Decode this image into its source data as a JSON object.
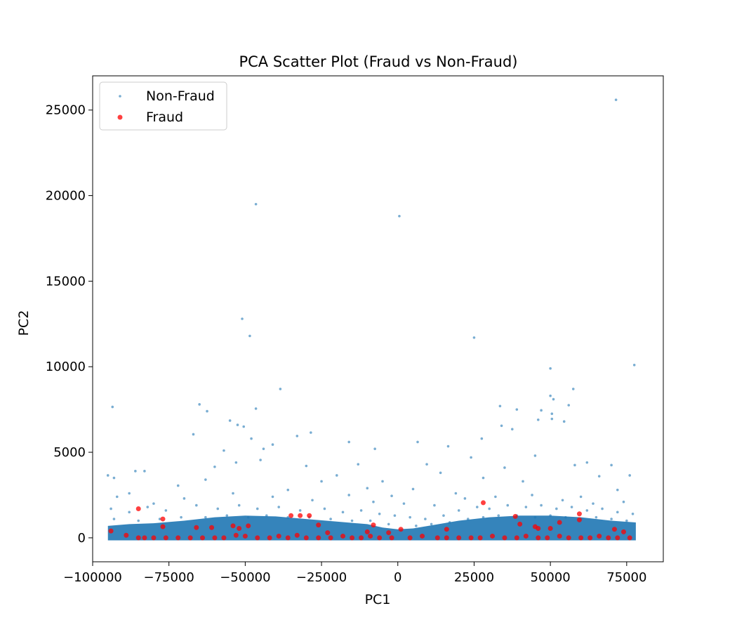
{
  "chart_data": {
    "type": "scatter",
    "title": "PCA Scatter Plot (Fraud vs Non-Fraud)",
    "xlabel": "PC1",
    "ylabel": "PC2",
    "xlim": [
      -100000,
      87000
    ],
    "ylim": [
      -1400,
      27000
    ],
    "xticks": [
      -100000,
      -75000,
      -50000,
      -25000,
      0,
      25000,
      50000,
      75000
    ],
    "xtick_labels": [
      "−100000",
      "−75000",
      "−50000",
      "−25000",
      "0",
      "25000",
      "50000",
      "75000"
    ],
    "yticks": [
      0,
      5000,
      10000,
      15000,
      20000,
      25000
    ],
    "ytick_labels": [
      "0",
      "5000",
      "10000",
      "15000",
      "20000",
      "25000"
    ],
    "grid": false,
    "legend_position": "top-left",
    "series": [
      {
        "name": "Non-Fraud",
        "color": "#1f77b4",
        "marker": "small-dot",
        "points": [
          [
            71500,
            25600
          ],
          [
            -46500,
            19500
          ],
          [
            500,
            18800
          ],
          [
            -51000,
            12800
          ],
          [
            -48500,
            11800
          ],
          [
            25000,
            11700
          ],
          [
            77500,
            10100
          ],
          [
            50000,
            9900
          ],
          [
            -38500,
            8700
          ],
          [
            57500,
            8700
          ],
          [
            50000,
            8300
          ],
          [
            51000,
            8100
          ],
          [
            -65000,
            7800
          ],
          [
            56000,
            7750
          ],
          [
            -93500,
            7650
          ],
          [
            33500,
            7700
          ],
          [
            39000,
            7500
          ],
          [
            -46500,
            7550
          ],
          [
            47000,
            7450
          ],
          [
            -62500,
            7400
          ],
          [
            50500,
            7250
          ],
          [
            50500,
            6950
          ],
          [
            46000,
            6900
          ],
          [
            54500,
            6800
          ],
          [
            -55000,
            6850
          ],
          [
            -52500,
            6600
          ],
          [
            -50500,
            6500
          ],
          [
            34000,
            6550
          ],
          [
            37500,
            6350
          ],
          [
            -28500,
            6150
          ],
          [
            -67000,
            6050
          ],
          [
            -33000,
            5950
          ],
          [
            27500,
            5800
          ],
          [
            -48000,
            5800
          ],
          [
            -44000,
            5200
          ],
          [
            -16000,
            5600
          ],
          [
            -41000,
            5450
          ],
          [
            6500,
            5600
          ],
          [
            16500,
            5350
          ],
          [
            -7500,
            5200
          ],
          [
            -57000,
            5100
          ],
          [
            -45000,
            4550
          ],
          [
            45000,
            4800
          ],
          [
            -30000,
            4200
          ],
          [
            62000,
            4400
          ],
          [
            -60000,
            4150
          ],
          [
            -53000,
            4400
          ],
          [
            24000,
            4700
          ],
          [
            70000,
            4250
          ],
          [
            -13000,
            4300
          ],
          [
            58000,
            4250
          ],
          [
            -83000,
            3900
          ],
          [
            -95000,
            3650
          ],
          [
            -93000,
            3500
          ],
          [
            -20000,
            3650
          ],
          [
            -63000,
            3400
          ],
          [
            9500,
            4300
          ],
          [
            14000,
            3800
          ],
          [
            35000,
            4100
          ],
          [
            76000,
            3650
          ],
          [
            -25000,
            3300
          ],
          [
            28000,
            3500
          ],
          [
            -5000,
            3300
          ],
          [
            66000,
            3600
          ],
          [
            -72000,
            3050
          ],
          [
            -10000,
            2900
          ],
          [
            5000,
            2850
          ],
          [
            -86000,
            3900
          ],
          [
            -88000,
            2600
          ],
          [
            41000,
            3300
          ],
          [
            -36000,
            2800
          ],
          [
            19000,
            2600
          ],
          [
            72000,
            2800
          ],
          [
            -2000,
            2450
          ],
          [
            60000,
            2400
          ],
          [
            -92000,
            2400
          ],
          [
            -80000,
            2000
          ],
          [
            -70000,
            2300
          ],
          [
            -54000,
            2600
          ],
          [
            -41000,
            2400
          ],
          [
            -28000,
            2200
          ],
          [
            -16000,
            2500
          ],
          [
            -8000,
            2100
          ],
          [
            2000,
            2000
          ],
          [
            12000,
            1900
          ],
          [
            22000,
            2300
          ],
          [
            32000,
            2400
          ],
          [
            44000,
            2500
          ],
          [
            54000,
            2200
          ],
          [
            64000,
            2000
          ],
          [
            74000,
            2100
          ],
          [
            -94000,
            1700
          ],
          [
            -88000,
            1500
          ],
          [
            -82000,
            1800
          ],
          [
            -76000,
            1600
          ],
          [
            -66000,
            1900
          ],
          [
            -59000,
            1700
          ],
          [
            -52000,
            1900
          ],
          [
            -46000,
            1700
          ],
          [
            -39000,
            1800
          ],
          [
            -32000,
            1600
          ],
          [
            -24000,
            1700
          ],
          [
            -18000,
            1500
          ],
          [
            -12000,
            1600
          ],
          [
            -6000,
            1400
          ],
          [
            -1000,
            1300
          ],
          [
            4000,
            1200
          ],
          [
            9000,
            1100
          ],
          [
            15000,
            1300
          ],
          [
            20000,
            1600
          ],
          [
            26000,
            1800
          ],
          [
            30000,
            1700
          ],
          [
            36000,
            1900
          ],
          [
            42000,
            1800
          ],
          [
            47000,
            1900
          ],
          [
            52000,
            1700
          ],
          [
            57000,
            1800
          ],
          [
            62000,
            1600
          ],
          [
            67000,
            1700
          ],
          [
            72000,
            1500
          ],
          [
            77000,
            1400
          ],
          [
            -93000,
            1100
          ],
          [
            -85000,
            1000
          ],
          [
            -78000,
            1100
          ],
          [
            -71000,
            1200
          ],
          [
            -63000,
            1200
          ],
          [
            -56000,
            1300
          ],
          [
            -49000,
            1200
          ],
          [
            -43000,
            1300
          ],
          [
            -36000,
            1200
          ],
          [
            -29000,
            1200
          ],
          [
            -22000,
            1100
          ],
          [
            -15000,
            1000
          ],
          [
            -9000,
            1000
          ],
          [
            -3000,
            800
          ],
          [
            6000,
            700
          ],
          [
            11000,
            800
          ],
          [
            17000,
            900
          ],
          [
            23000,
            1100
          ],
          [
            28000,
            1200
          ],
          [
            33000,
            1300
          ],
          [
            39000,
            1300
          ],
          [
            45000,
            1200
          ],
          [
            50000,
            1300
          ],
          [
            55000,
            1200
          ],
          [
            60000,
            1100
          ],
          [
            65000,
            1200
          ],
          [
            70000,
            1100
          ],
          [
            75000,
            1000
          ]
        ]
      },
      {
        "name": "Fraud",
        "color": "#ff0000",
        "marker": "dot",
        "points": [
          [
            -85000,
            1700
          ],
          [
            -77000,
            1100
          ],
          [
            -77000,
            650
          ],
          [
            -66000,
            600
          ],
          [
            -61000,
            600
          ],
          [
            -54000,
            700
          ],
          [
            -52000,
            550
          ],
          [
            -49000,
            700
          ],
          [
            -35000,
            1300
          ],
          [
            -32000,
            1300
          ],
          [
            -29000,
            1300
          ],
          [
            -26000,
            750
          ],
          [
            -23000,
            300
          ],
          [
            -8000,
            750
          ],
          [
            -10000,
            350
          ],
          [
            -3000,
            300
          ],
          [
            1000,
            500
          ],
          [
            16000,
            500
          ],
          [
            28000,
            2050
          ],
          [
            38500,
            1250
          ],
          [
            40000,
            800
          ],
          [
            45000,
            650
          ],
          [
            46000,
            550
          ],
          [
            50000,
            550
          ],
          [
            53000,
            900
          ],
          [
            59500,
            1400
          ],
          [
            59500,
            1050
          ],
          [
            71000,
            500
          ],
          [
            74000,
            350
          ],
          [
            -94000,
            400
          ],
          [
            -89000,
            150
          ],
          [
            -85000,
            0
          ],
          [
            -83000,
            0
          ],
          [
            -80000,
            0
          ],
          [
            -76000,
            0
          ],
          [
            -72000,
            0
          ],
          [
            -68000,
            0
          ],
          [
            -64000,
            0
          ],
          [
            -60000,
            0
          ],
          [
            -57000,
            0
          ],
          [
            -53000,
            150
          ],
          [
            -50000,
            100
          ],
          [
            -46000,
            0
          ],
          [
            -42000,
            0
          ],
          [
            -39000,
            100
          ],
          [
            -36000,
            0
          ],
          [
            -33000,
            150
          ],
          [
            -30000,
            0
          ],
          [
            -26000,
            0
          ],
          [
            -22000,
            0
          ],
          [
            -18000,
            100
          ],
          [
            -15000,
            0
          ],
          [
            -12000,
            0
          ],
          [
            -9000,
            100
          ],
          [
            -6000,
            0
          ],
          [
            -2000,
            0
          ],
          [
            4000,
            0
          ],
          [
            8000,
            100
          ],
          [
            13000,
            0
          ],
          [
            16000,
            0
          ],
          [
            20000,
            0
          ],
          [
            24000,
            0
          ],
          [
            27000,
            0
          ],
          [
            31000,
            100
          ],
          [
            35000,
            0
          ],
          [
            39000,
            0
          ],
          [
            42000,
            100
          ],
          [
            46000,
            0
          ],
          [
            49000,
            0
          ],
          [
            53000,
            100
          ],
          [
            56000,
            0
          ],
          [
            60000,
            0
          ],
          [
            63000,
            0
          ],
          [
            66000,
            100
          ],
          [
            69000,
            0
          ],
          [
            72000,
            0
          ],
          [
            76000,
            0
          ]
        ]
      }
    ]
  }
}
